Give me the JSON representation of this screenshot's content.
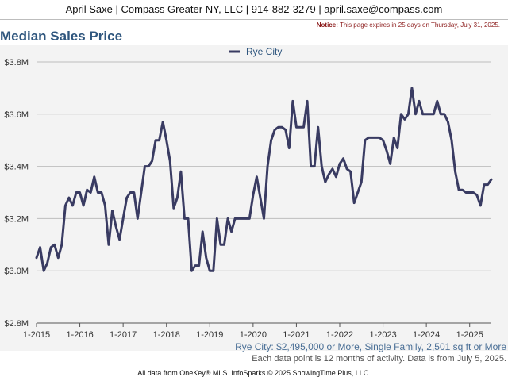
{
  "header": {
    "text": "April Saxe | Compass Greater NY, LLC | 914-882-3279 | april.saxe@compass.com"
  },
  "notice": {
    "label": "Notice:",
    "text": "This page expires in 25 days on Thursday, July 31, 2025."
  },
  "footer": {
    "subtitle": "Rye City: $2,495,000 or More, Single Family, 2,501 sq ft or More",
    "note": "Each data point is 12 months of activity. Data is from July 5, 2025.",
    "credit": "All data from OneKey® MLS. InfoSparks © 2025 ShowingTime Plus, LLC."
  },
  "chart_data": {
    "type": "line",
    "title": "Median Sales Price",
    "xlabel": "",
    "ylabel": "",
    "ylim": [
      2.8,
      3.8
    ],
    "y_unit": "$M",
    "xlim": [
      "2015-01",
      "2025-07"
    ],
    "grid": true,
    "legend_position": "top-center",
    "y_ticks": [
      "$2.8M",
      "$3.0M",
      "$3.2M",
      "$3.4M",
      "$3.6M",
      "$3.8M"
    ],
    "x_ticks": [
      "1-2015",
      "1-2016",
      "1-2017",
      "1-2018",
      "1-2019",
      "1-2020",
      "1-2021",
      "1-2022",
      "1-2023",
      "1-2024",
      "1-2025"
    ],
    "series": [
      {
        "name": "Rye City",
        "color": "#393b62",
        "points": [
          [
            "2015-01",
            3.05
          ],
          [
            "2015-02",
            3.09
          ],
          [
            "2015-03",
            3.0
          ],
          [
            "2015-04",
            3.03
          ],
          [
            "2015-05",
            3.09
          ],
          [
            "2015-06",
            3.1
          ],
          [
            "2015-07",
            3.05
          ],
          [
            "2015-08",
            3.1
          ],
          [
            "2015-09",
            3.25
          ],
          [
            "2015-10",
            3.28
          ],
          [
            "2015-11",
            3.25
          ],
          [
            "2015-12",
            3.3
          ],
          [
            "2016-01",
            3.3
          ],
          [
            "2016-02",
            3.25
          ],
          [
            "2016-03",
            3.31
          ],
          [
            "2016-04",
            3.3
          ],
          [
            "2016-05",
            3.36
          ],
          [
            "2016-06",
            3.3
          ],
          [
            "2016-07",
            3.3
          ],
          [
            "2016-08",
            3.25
          ],
          [
            "2016-09",
            3.1
          ],
          [
            "2016-10",
            3.23
          ],
          [
            "2016-11",
            3.17
          ],
          [
            "2016-12",
            3.12
          ],
          [
            "2017-01",
            3.2
          ],
          [
            "2017-02",
            3.28
          ],
          [
            "2017-03",
            3.3
          ],
          [
            "2017-04",
            3.3
          ],
          [
            "2017-05",
            3.2
          ],
          [
            "2017-06",
            3.3
          ],
          [
            "2017-07",
            3.4
          ],
          [
            "2017-08",
            3.4
          ],
          [
            "2017-09",
            3.42
          ],
          [
            "2017-10",
            3.5
          ],
          [
            "2017-11",
            3.5
          ],
          [
            "2017-12",
            3.57
          ],
          [
            "2018-01",
            3.5
          ],
          [
            "2018-02",
            3.42
          ],
          [
            "2018-03",
            3.24
          ],
          [
            "2018-04",
            3.28
          ],
          [
            "2018-05",
            3.38
          ],
          [
            "2018-06",
            3.2
          ],
          [
            "2018-07",
            3.2
          ],
          [
            "2018-08",
            3.0
          ],
          [
            "2018-09",
            3.02
          ],
          [
            "2018-10",
            3.02
          ],
          [
            "2018-11",
            3.15
          ],
          [
            "2018-12",
            3.05
          ],
          [
            "2019-01",
            3.0
          ],
          [
            "2019-02",
            3.0
          ],
          [
            "2019-03",
            3.2
          ],
          [
            "2019-04",
            3.1
          ],
          [
            "2019-05",
            3.1
          ],
          [
            "2019-06",
            3.2
          ],
          [
            "2019-07",
            3.15
          ],
          [
            "2019-08",
            3.2
          ],
          [
            "2019-09",
            3.2
          ],
          [
            "2019-10",
            3.2
          ],
          [
            "2019-11",
            3.2
          ],
          [
            "2019-12",
            3.2
          ],
          [
            "2020-01",
            3.29
          ],
          [
            "2020-02",
            3.36
          ],
          [
            "2020-03",
            3.28
          ],
          [
            "2020-04",
            3.2
          ],
          [
            "2020-05",
            3.4
          ],
          [
            "2020-06",
            3.5
          ],
          [
            "2020-07",
            3.54
          ],
          [
            "2020-08",
            3.55
          ],
          [
            "2020-09",
            3.55
          ],
          [
            "2020-10",
            3.54
          ],
          [
            "2020-11",
            3.47
          ],
          [
            "2020-12",
            3.65
          ],
          [
            "2021-01",
            3.55
          ],
          [
            "2021-02",
            3.55
          ],
          [
            "2021-03",
            3.55
          ],
          [
            "2021-04",
            3.65
          ],
          [
            "2021-05",
            3.4
          ],
          [
            "2021-06",
            3.4
          ],
          [
            "2021-07",
            3.55
          ],
          [
            "2021-08",
            3.4
          ],
          [
            "2021-09",
            3.34
          ],
          [
            "2021-10",
            3.37
          ],
          [
            "2021-11",
            3.39
          ],
          [
            "2021-12",
            3.36
          ],
          [
            "2022-01",
            3.41
          ],
          [
            "2022-02",
            3.43
          ],
          [
            "2022-03",
            3.39
          ],
          [
            "2022-04",
            3.38
          ],
          [
            "2022-05",
            3.26
          ],
          [
            "2022-06",
            3.3
          ],
          [
            "2022-07",
            3.34
          ],
          [
            "2022-08",
            3.5
          ],
          [
            "2022-09",
            3.51
          ],
          [
            "2022-10",
            3.51
          ],
          [
            "2022-11",
            3.51
          ],
          [
            "2022-12",
            3.51
          ],
          [
            "2023-01",
            3.5
          ],
          [
            "2023-02",
            3.46
          ],
          [
            "2023-03",
            3.41
          ],
          [
            "2023-04",
            3.51
          ],
          [
            "2023-05",
            3.47
          ],
          [
            "2023-06",
            3.6
          ],
          [
            "2023-07",
            3.58
          ],
          [
            "2023-08",
            3.6
          ],
          [
            "2023-09",
            3.7
          ],
          [
            "2023-10",
            3.6
          ],
          [
            "2023-11",
            3.65
          ],
          [
            "2023-12",
            3.6
          ],
          [
            "2024-01",
            3.6
          ],
          [
            "2024-02",
            3.6
          ],
          [
            "2024-03",
            3.6
          ],
          [
            "2024-04",
            3.65
          ],
          [
            "2024-05",
            3.6
          ],
          [
            "2024-06",
            3.6
          ],
          [
            "2024-07",
            3.57
          ],
          [
            "2024-08",
            3.5
          ],
          [
            "2024-09",
            3.38
          ],
          [
            "2024-10",
            3.31
          ],
          [
            "2024-11",
            3.31
          ],
          [
            "2024-12",
            3.3
          ],
          [
            "2025-01",
            3.3
          ],
          [
            "2025-02",
            3.3
          ],
          [
            "2025-03",
            3.29
          ],
          [
            "2025-04",
            3.25
          ],
          [
            "2025-05",
            3.33
          ],
          [
            "2025-06",
            3.33
          ],
          [
            "2025-07",
            3.35
          ]
        ]
      }
    ]
  }
}
